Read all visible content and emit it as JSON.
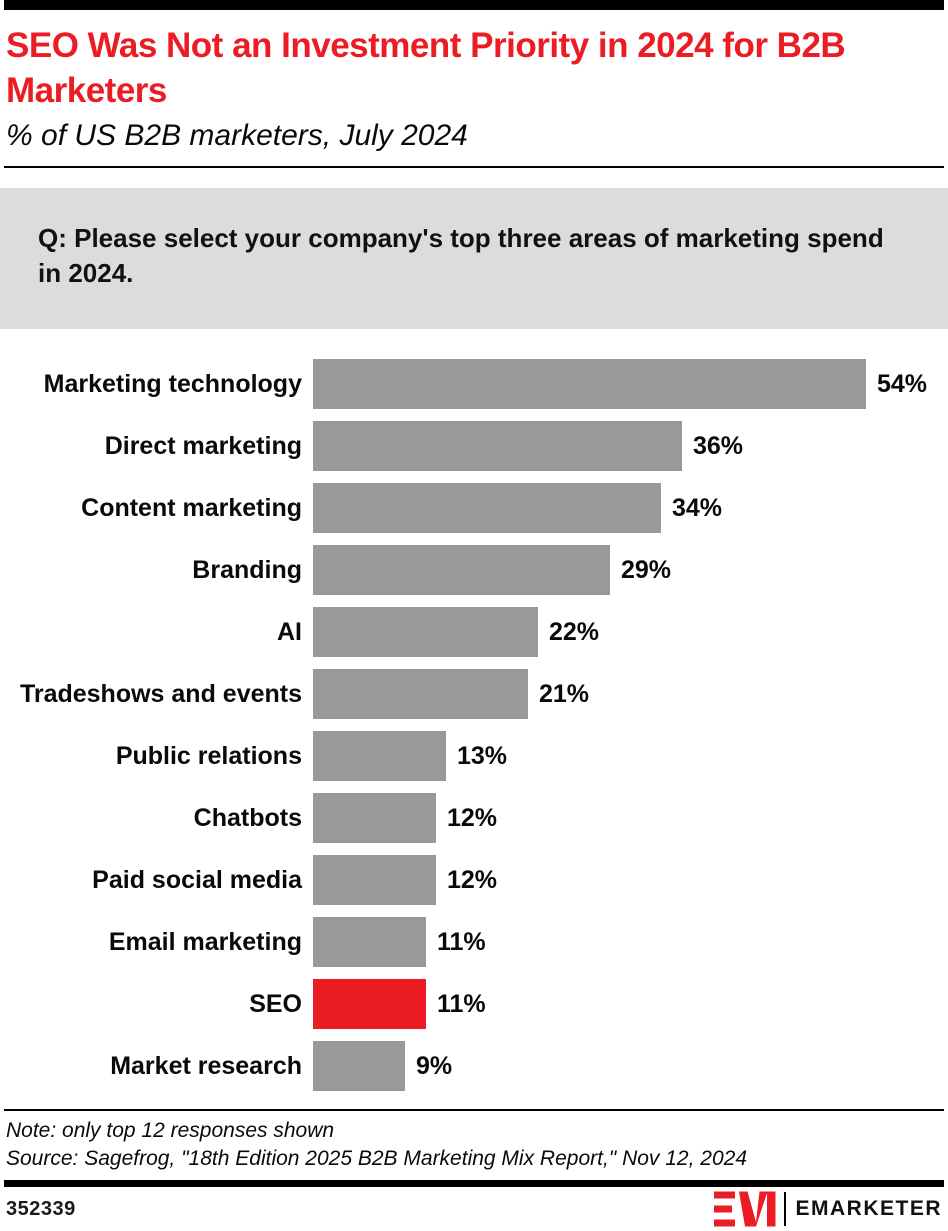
{
  "header": {
    "title": "SEO Was Not an Investment Priority in 2024 for B2B Marketers",
    "subtitle": "% of US B2B marketers, July 2024"
  },
  "question": {
    "text": "Q: Please select your company's top three areas of marketing spend in 2024."
  },
  "chart_data": {
    "type": "bar",
    "orientation": "horizontal",
    "title": "SEO Was Not an Investment Priority in 2024 for B2B Marketers",
    "subtitle": "% of US B2B marketers, July 2024",
    "categories": [
      "Marketing technology",
      "Direct marketing",
      "Content marketing",
      "Branding",
      "AI",
      "Tradeshows and events",
      "Public relations",
      "Chatbots",
      "Paid social media",
      "Email marketing",
      "SEO",
      "Market research"
    ],
    "values": [
      54,
      36,
      34,
      29,
      22,
      21,
      13,
      12,
      12,
      11,
      11,
      9
    ],
    "value_labels": [
      "54%",
      "36%",
      "34%",
      "29%",
      "22%",
      "21%",
      "13%",
      "12%",
      "12%",
      "11%",
      "11%",
      "9%"
    ],
    "unit": "%",
    "xlim": [
      0,
      54
    ],
    "grid": false,
    "legend": "none",
    "highlight_category": "SEO",
    "bar_color": "#999999",
    "highlight_color": "#EC1C24"
  },
  "footer": {
    "note": "Note: only top 12 responses shown",
    "source": "Source: Sagefrog, \"18th Edition 2025 B2B Marketing Mix Report,\" Nov 12, 2024",
    "chart_id": "352339",
    "brand": "EMARKETER"
  },
  "colors": {
    "accent_red": "#EC1C24",
    "bar_gray": "#999999",
    "question_bg": "#DCDCDC",
    "rule_black": "#000000"
  }
}
